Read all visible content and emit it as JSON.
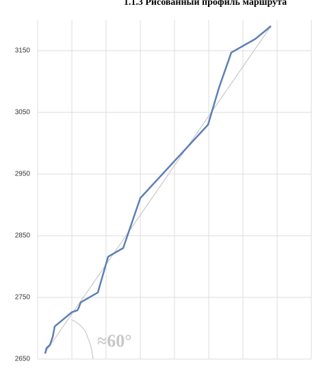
{
  "chart_data": {
    "type": "line",
    "title": "1.1.3 Рисованный профиль маршрута",
    "xlim": [
      0,
      8
    ],
    "xticks": [
      0,
      1,
      2,
      3,
      4,
      5,
      6,
      7,
      8
    ],
    "ylim": [
      2650,
      3200
    ],
    "yticks": [
      2650,
      2750,
      2850,
      2950,
      3050,
      3150
    ],
    "grid": true,
    "annotation": "≈60°",
    "series": [
      {
        "color": "#c8c8c8",
        "x": [
          0.2,
          6.82
        ],
        "values": [
          2659,
          3190
        ]
      },
      {
        "color": "#5b7fb8",
        "x": [
          0.22,
          0.26,
          0.36,
          0.44,
          0.5,
          1.0,
          1.16,
          1.2,
          1.26,
          1.76,
          2.06,
          2.5,
          3.0,
          4.98,
          5.3,
          5.66,
          6.36,
          6.82
        ],
        "values": [
          2659,
          2668,
          2673,
          2686,
          2703,
          2726,
          2729,
          2733,
          2742,
          2758,
          2816,
          2830,
          2911,
          3030,
          3090,
          3147,
          3169,
          3190
        ]
      }
    ]
  }
}
